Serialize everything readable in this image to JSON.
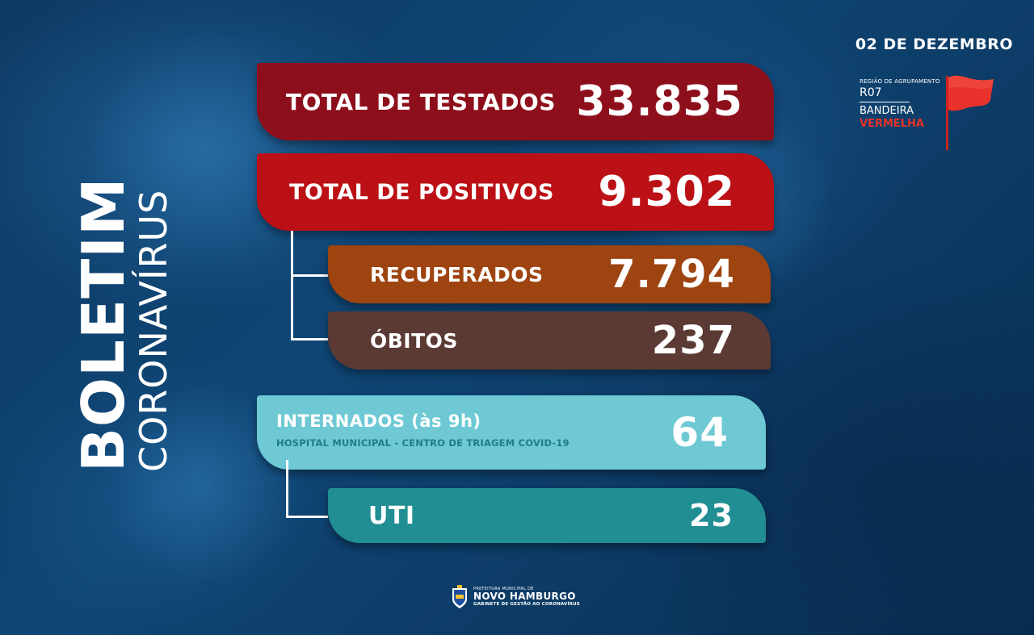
{
  "date": "02 DE DEZEMBRO",
  "region": {
    "group_label": "REGIÃO DE AGRUPAMENTO",
    "code": "R07",
    "flag_label": "BANDEIRA",
    "flag_color_label": "VERMELHA",
    "flag_color": "#e8322b",
    "icon": "red-flag-icon"
  },
  "title": {
    "main": "BOLETIM",
    "sub": "CORONAVÍRUS"
  },
  "stats": {
    "testados": {
      "label": "TOTAL DE TESTADOS",
      "value": "33.835",
      "color": "#8e0f1c"
    },
    "positivos": {
      "label": "TOTAL DE POSITIVOS",
      "value": "9.302",
      "color": "#bb1015"
    },
    "recuperados": {
      "label": "RECUPERADOS",
      "value": "7.794",
      "color": "#9e4410"
    },
    "obitos": {
      "label": "ÓBITOS",
      "value": "237",
      "color": "#5b3a34"
    },
    "internados": {
      "label": "INTERNADOS (às 9h)",
      "sublabel": "HOSPITAL MUNICIPAL - CENTRO DE TRIAGEM COVID-19",
      "value": "64",
      "color": "#6ec9d4"
    },
    "uti": {
      "label": "UTI",
      "value": "23",
      "color": "#218e93"
    }
  },
  "footer": {
    "line1": "PREFEITURA MUNICIPAL DE",
    "line2": "NOVO HAMBURGO",
    "line3": "GABINETE DE GESTÃO AO CORONAVÍRUS",
    "icon": "city-crest-icon"
  }
}
